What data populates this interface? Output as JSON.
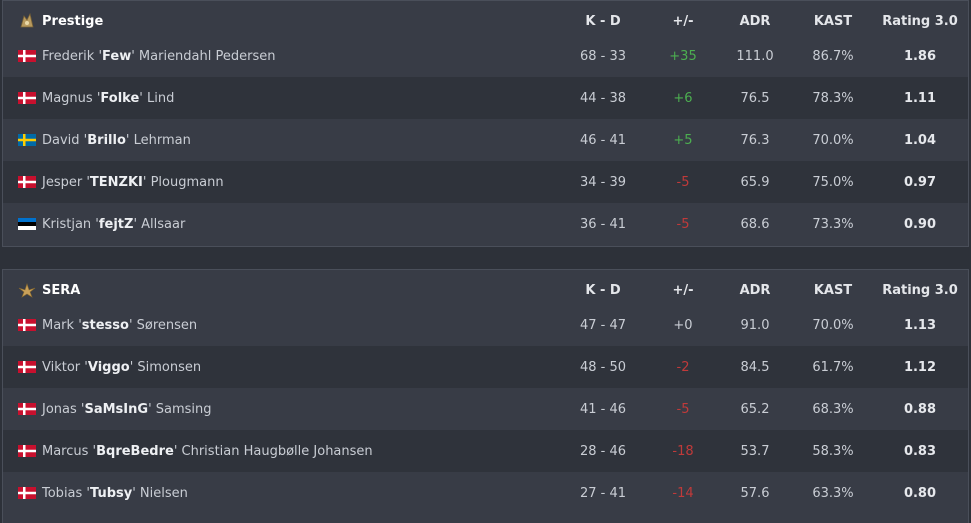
{
  "columns": [
    "K - D",
    "+/-",
    "ADR",
    "KAST",
    "Rating 3.0"
  ],
  "teams": [
    {
      "name": "Prestige",
      "logo_icon": "prestige-logo-icon",
      "players": [
        {
          "flag": "dk",
          "first": "Frederik '",
          "nick": "Few",
          "last": "' Mariendahl Pedersen",
          "kd": "68 - 33",
          "pm": "+35",
          "pm_sign": "pos",
          "adr": "111.0",
          "kast": "86.7%",
          "rating": "1.86"
        },
        {
          "flag": "dk",
          "first": "Magnus '",
          "nick": "Folke",
          "last": "' Lind",
          "kd": "44 - 38",
          "pm": "+6",
          "pm_sign": "pos",
          "adr": "76.5",
          "kast": "78.3%",
          "rating": "1.11"
        },
        {
          "flag": "se",
          "first": "David '",
          "nick": "Brillo",
          "last": "' Lehrman",
          "kd": "46 - 41",
          "pm": "+5",
          "pm_sign": "pos",
          "adr": "76.3",
          "kast": "70.0%",
          "rating": "1.04"
        },
        {
          "flag": "dk",
          "first": "Jesper '",
          "nick": "TENZKI",
          "last": "' Plougmann",
          "kd": "34 - 39",
          "pm": "-5",
          "pm_sign": "neg",
          "adr": "65.9",
          "kast": "75.0%",
          "rating": "0.97"
        },
        {
          "flag": "ee",
          "first": "Kristjan '",
          "nick": "fejtZ",
          "last": "' Allsaar",
          "kd": "36 - 41",
          "pm": "-5",
          "pm_sign": "neg",
          "adr": "68.6",
          "kast": "73.3%",
          "rating": "0.90"
        }
      ]
    },
    {
      "name": "SERA",
      "logo_icon": "sera-logo-icon",
      "players": [
        {
          "flag": "dk",
          "first": "Mark '",
          "nick": "stesso",
          "last": "' Sørensen",
          "kd": "47 - 47",
          "pm": "+0",
          "pm_sign": "zero",
          "adr": "91.0",
          "kast": "70.0%",
          "rating": "1.13"
        },
        {
          "flag": "dk",
          "first": "Viktor '",
          "nick": "Viggo",
          "last": "' Simonsen",
          "kd": "48 - 50",
          "pm": "-2",
          "pm_sign": "neg",
          "adr": "84.5",
          "kast": "61.7%",
          "rating": "1.12"
        },
        {
          "flag": "dk",
          "first": "Jonas '",
          "nick": "SaMsInG",
          "last": "' Samsing",
          "kd": "41 - 46",
          "pm": "-5",
          "pm_sign": "neg",
          "adr": "65.2",
          "kast": "68.3%",
          "rating": "0.88"
        },
        {
          "flag": "dk",
          "first": "Marcus '",
          "nick": "BqreBedre",
          "last": "' Christian Haugbølle Johansen",
          "kd": "28 - 46",
          "pm": "-18",
          "pm_sign": "neg",
          "adr": "53.7",
          "kast": "58.3%",
          "rating": "0.83"
        },
        {
          "flag": "dk",
          "first": "Tobias '",
          "nick": "Tubsy",
          "last": "' Nielsen",
          "kd": "27 - 41",
          "pm": "-14",
          "pm_sign": "neg",
          "adr": "57.6",
          "kast": "63.3%",
          "rating": "0.80"
        }
      ]
    }
  ],
  "colors": {
    "positive": "#4caf50",
    "negative": "#c03a3a",
    "panel": "#383c46",
    "alt_row": "#2f333b"
  }
}
